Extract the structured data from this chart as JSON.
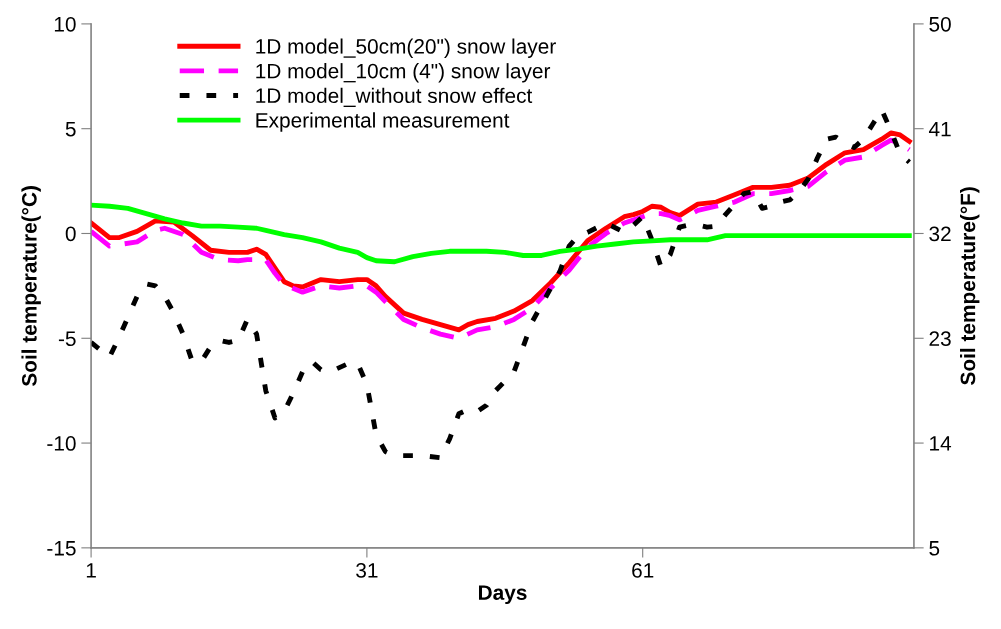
{
  "chart_data": {
    "type": "line",
    "xlabel": "Days",
    "ylabel": "Soil temperature(°C)",
    "y2label": "Soil temperature(°F)",
    "xlim": [
      1,
      90.5
    ],
    "xticks": [
      1,
      31,
      61
    ],
    "ylim": [
      -15,
      10
    ],
    "yticks": [
      -15,
      -10,
      -5,
      0,
      5,
      10
    ],
    "y2lim": [
      5,
      50
    ],
    "y2ticks": [
      5,
      14,
      23,
      32,
      41,
      50
    ],
    "grid": false,
    "legend": "top left",
    "marker": "none",
    "series": [
      {
        "name": "1D model_50cm(20\") snow layer",
        "color": "#ff0000",
        "line_style": "solid",
        "x": [
          1,
          3,
          4,
          6,
          8,
          10,
          12,
          14,
          16,
          18,
          19,
          20,
          22,
          23,
          24,
          26,
          28,
          30,
          31,
          32,
          33,
          35,
          37,
          39,
          41,
          42,
          43,
          45,
          47,
          49,
          51,
          53,
          55,
          57,
          59,
          60,
          61,
          62,
          63,
          64,
          65,
          67,
          69,
          71,
          73,
          75,
          77,
          79,
          81,
          83,
          85,
          87,
          88,
          89,
          90
        ],
        "values": [
          0.5,
          -0.2,
          -0.2,
          0.1,
          0.6,
          0.55,
          -0.1,
          -0.8,
          -0.9,
          -0.9,
          -0.75,
          -1.0,
          -2.3,
          -2.5,
          -2.55,
          -2.2,
          -2.3,
          -2.2,
          -2.2,
          -2.5,
          -3.0,
          -3.8,
          -4.1,
          -4.35,
          -4.6,
          -4.35,
          -4.2,
          -4.05,
          -3.7,
          -3.2,
          -2.35,
          -1.4,
          -0.35,
          0.25,
          0.8,
          0.9,
          1.05,
          1.3,
          1.25,
          1.0,
          0.85,
          1.4,
          1.5,
          1.85,
          2.2,
          2.2,
          2.3,
          2.65,
          3.3,
          3.85,
          4.0,
          4.5,
          4.8,
          4.7,
          4.4
        ]
      },
      {
        "name": "1D model_10cm (4\") snow layer",
        "color": "#ff00ff",
        "line_style": "dashed",
        "x": [
          1,
          3,
          6,
          8,
          9,
          11,
          13,
          15,
          17,
          18,
          20,
          21,
          22,
          24,
          26,
          28,
          30,
          31,
          32,
          33,
          35,
          37,
          39,
          41,
          43,
          45,
          47,
          49,
          51,
          53,
          55,
          57,
          59,
          61,
          62,
          63,
          64,
          65,
          67,
          69,
          71,
          73,
          75,
          77,
          79,
          81,
          83,
          85,
          87,
          88,
          89,
          90
        ],
        "values": [
          0.1,
          -0.6,
          -0.4,
          0.15,
          0.25,
          -0.05,
          -0.9,
          -1.25,
          -1.3,
          -1.25,
          -1.25,
          -1.9,
          -2.45,
          -2.8,
          -2.5,
          -2.6,
          -2.5,
          -2.5,
          -2.8,
          -3.25,
          -4.1,
          -4.5,
          -4.8,
          -5.0,
          -4.6,
          -4.45,
          -4.1,
          -3.55,
          -2.6,
          -1.75,
          -0.65,
          0.0,
          0.5,
          0.8,
          0.95,
          0.95,
          0.85,
          0.65,
          1.1,
          1.3,
          1.5,
          1.9,
          1.9,
          2.05,
          2.25,
          2.95,
          3.5,
          3.65,
          4.2,
          4.45,
          4.3,
          4.0
        ]
      },
      {
        "name": "1D model_without snow effect",
        "color": "#000000",
        "line_style": "dotted",
        "x": [
          1,
          3,
          4,
          5,
          6,
          7,
          8,
          9,
          10,
          11,
          12,
          13,
          14,
          15,
          16,
          17,
          18,
          19,
          20,
          21,
          22,
          23,
          24,
          25,
          26,
          27,
          28,
          29,
          30,
          31,
          32,
          33,
          34,
          37,
          39,
          40,
          41,
          42,
          43,
          44,
          45,
          47,
          48,
          49,
          50,
          51,
          52,
          53,
          54,
          55,
          57,
          59,
          60,
          61,
          62,
          63,
          64,
          65,
          66,
          67,
          68,
          69,
          70,
          71,
          72,
          73,
          74,
          75,
          76,
          77,
          78,
          79,
          80,
          81,
          82,
          83,
          84,
          85,
          86,
          87,
          88,
          89,
          90
        ],
        "values": [
          -5.2,
          -5.9,
          -5.0,
          -4.0,
          -3.0,
          -2.4,
          -2.5,
          -3.0,
          -3.8,
          -4.8,
          -6.1,
          -6.1,
          -5.4,
          -5.1,
          -5.2,
          -5.1,
          -4.1,
          -4.8,
          -7.5,
          -8.8,
          -8.5,
          -7.6,
          -6.6,
          -6.1,
          -6.5,
          -6.6,
          -6.4,
          -6.2,
          -6.2,
          -7.2,
          -9.6,
          -10.4,
          -10.6,
          -10.6,
          -10.7,
          -9.8,
          -8.6,
          -8.4,
          -8.5,
          -8.2,
          -7.5,
          -6.6,
          -5.4,
          -4.2,
          -3.4,
          -2.6,
          -1.8,
          -0.6,
          -0.1,
          0.05,
          0.5,
          0.05,
          0.4,
          0.8,
          -0.3,
          -1.6,
          -1.0,
          0.3,
          0.4,
          0.4,
          0.3,
          0.35,
          0.9,
          1.4,
          1.9,
          2.0,
          1.2,
          1.3,
          1.5,
          1.6,
          2.0,
          2.6,
          3.6,
          4.5,
          4.6,
          4.3,
          4.1,
          4.5,
          5.2,
          5.9,
          4.9,
          3.8,
          3.4
        ]
      },
      {
        "name": "Experimental measurement",
        "color": "#00ff00",
        "line_style": "solid",
        "x": [
          1,
          3,
          5,
          7,
          9,
          11,
          13,
          15,
          17,
          19,
          20,
          22,
          24,
          26,
          28,
          30,
          31,
          32,
          34,
          36,
          38,
          40,
          42,
          44,
          46,
          48,
          50,
          52,
          54,
          56,
          58,
          60,
          62,
          64,
          68,
          70,
          90
        ],
        "values": [
          1.35,
          1.3,
          1.2,
          0.95,
          0.7,
          0.5,
          0.35,
          0.35,
          0.3,
          0.25,
          0.15,
          -0.05,
          -0.2,
          -0.4,
          -0.7,
          -0.9,
          -1.15,
          -1.3,
          -1.35,
          -1.1,
          -0.95,
          -0.85,
          -0.85,
          -0.85,
          -0.9,
          -1.05,
          -1.05,
          -0.85,
          -0.75,
          -0.6,
          -0.5,
          -0.4,
          -0.35,
          -0.3,
          -0.3,
          -0.1,
          -0.1
        ]
      }
    ]
  }
}
